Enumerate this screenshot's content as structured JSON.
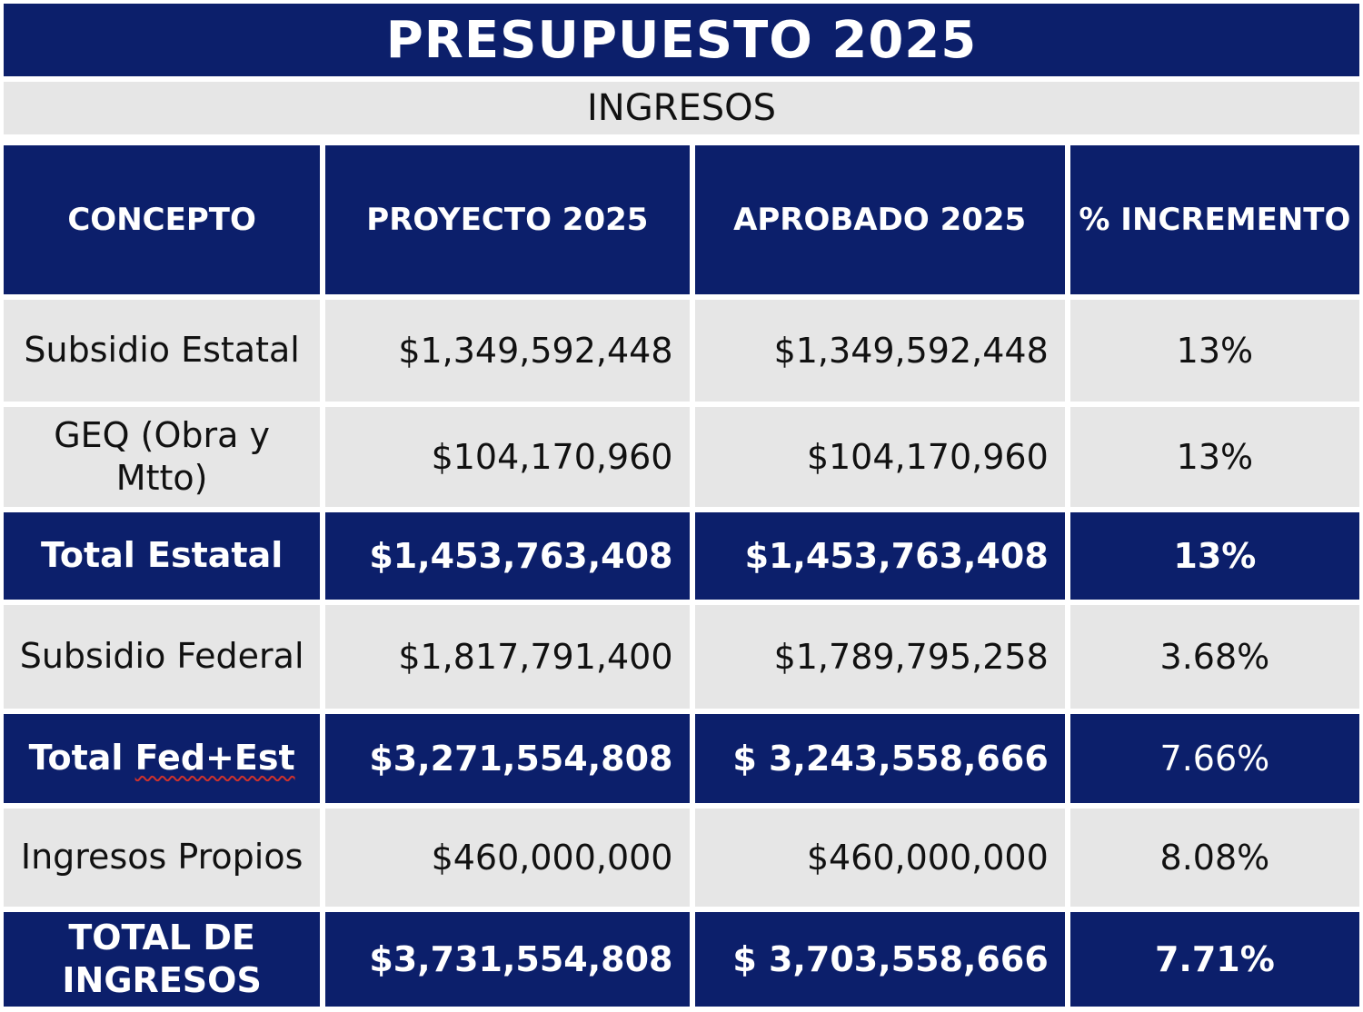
{
  "title": "PRESUPUESTO 2025",
  "section": "INGRESOS",
  "colors": {
    "navy": "#0c1f6b",
    "light_gray": "#e6e6e6",
    "white": "#ffffff"
  },
  "table": {
    "headers": {
      "concept": "CONCEPTO",
      "project": "PROYECTO 2025",
      "approved": "APROBADO 2025",
      "increase": "% INCREMENTO"
    },
    "rows": [
      {
        "concept": "Subsidio Estatal",
        "project": "$1,349,592,448",
        "approved": "$1,349,592,448",
        "increase": "13%"
      },
      {
        "concept": "GEQ (Obra y Mtto)",
        "project": "$104,170,960",
        "approved": "$104,170,960",
        "increase": "13%"
      },
      {
        "concept": "Total Estatal",
        "project": "$1,453,763,408",
        "approved": "$1,453,763,408",
        "increase": "13%"
      },
      {
        "concept": "Subsidio Federal",
        "project": "$1,817,791,400",
        "approved": "$1,789,795,258",
        "increase": "3.68%"
      },
      {
        "concept_prefix": "Total ",
        "concept_flagged": "Fed+Est",
        "project": "$3,271,554,808",
        "approved": "$ 3,243,558,666",
        "increase": "7.66%"
      },
      {
        "concept": "Ingresos Propios",
        "project": "$460,000,000",
        "approved": "$460,000,000",
        "increase": "8.08%"
      },
      {
        "concept": "TOTAL DE INGRESOS",
        "project": "$3,731,554,808",
        "approved": "$ 3,703,558,666",
        "increase": "7.71%"
      }
    ]
  }
}
